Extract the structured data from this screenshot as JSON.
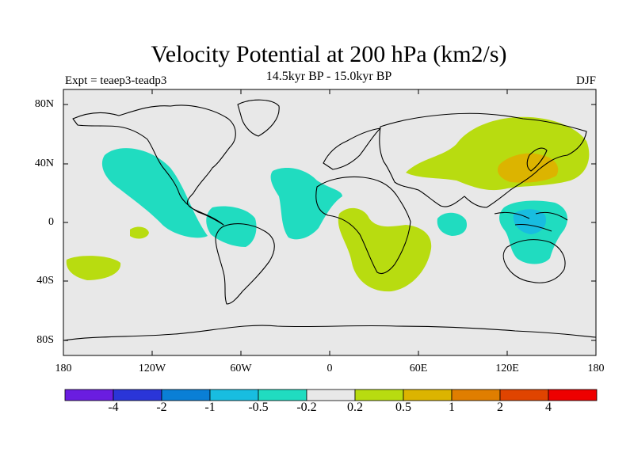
{
  "title": "Velocity Potential at 200 hPa (km2/s)",
  "subtitle": "14.5kyr BP - 15.0kyr BP",
  "left_label": "Expt = teaep3-teadp3",
  "right_label": "DJF",
  "lat_labels": [
    "80N",
    "40N",
    "0",
    "40S",
    "80S"
  ],
  "lon_labels": [
    "180",
    "120W",
    "60W",
    "0",
    "60E",
    "120E",
    "180"
  ],
  "colorbar": {
    "colors": [
      "#6a1de0",
      "#2a35d8",
      "#0a7fd6",
      "#18bde0",
      "#20dcc0",
      "#e8e8e8",
      "#b8dc10",
      "#dcb400",
      "#e07e00",
      "#e04400",
      "#ee0000"
    ],
    "labels": [
      "-4",
      "-2",
      "-1",
      "-0.5",
      "-0.2",
      "0.2",
      "0.5",
      "1",
      "2",
      "4"
    ]
  }
}
